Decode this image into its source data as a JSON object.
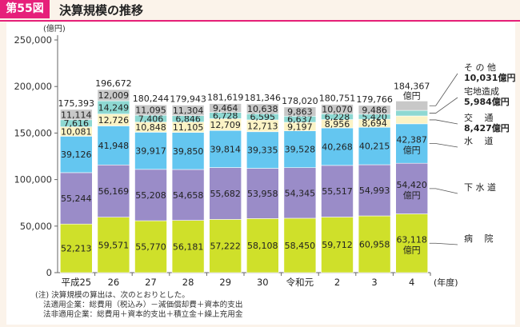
{
  "header": {
    "badge": "第55図",
    "title": "決算規模の推移"
  },
  "chart_data": {
    "type": "bar",
    "stacked": true,
    "title": "決算規模の推移",
    "ylabel": "(億円)",
    "xlabel": "(年度)",
    "ylim": [
      0,
      250000
    ],
    "yticks": [
      "0",
      "50,000",
      "100,000",
      "150,000",
      "200,000",
      "250,000"
    ],
    "categories": [
      "平成25",
      "26",
      "27",
      "28",
      "29",
      "30",
      "令和元",
      "2",
      "3",
      "4"
    ],
    "totals": [
      175393,
      196672,
      180244,
      179943,
      181619,
      181346,
      178020,
      180751,
      179766,
      184367
    ],
    "total_labels": [
      "175,393",
      "196,672",
      "180,244",
      "179,943",
      "181,619",
      "181,346",
      "178,020",
      "180,751",
      "179,766",
      "184,367"
    ],
    "total_unit_last": "億円",
    "series": [
      {
        "name": "病院",
        "color": "#cfe02a",
        "values": [
          52213,
          59571,
          55770,
          56181,
          57222,
          58108,
          58450,
          59712,
          60958,
          63118
        ],
        "labels": [
          "52,213",
          "59,571",
          "55,770",
          "56,181",
          "57,222",
          "58,108",
          "58,450",
          "59,712",
          "60,958",
          "63,118"
        ]
      },
      {
        "name": "下水道",
        "color": "#9a8cc8",
        "values": [
          55244,
          56169,
          55208,
          54658,
          55682,
          53958,
          54345,
          55517,
          54993,
          54420
        ],
        "labels": [
          "55,244",
          "56,169",
          "55,208",
          "54,658",
          "55,682",
          "53,958",
          "54,345",
          "55,517",
          "54,993",
          "54,420"
        ]
      },
      {
        "name": "水道",
        "color": "#64c6f0",
        "values": [
          39126,
          41948,
          39917,
          39850,
          39814,
          39335,
          39528,
          40268,
          40215,
          42387
        ],
        "labels": [
          "39,126",
          "41,948",
          "39,917",
          "39,850",
          "39,814",
          "39,335",
          "39,528",
          "40,268",
          "40,215",
          "42,387"
        ]
      },
      {
        "name": "交通",
        "color": "#fbf3c5",
        "values": [
          10081,
          12726,
          10848,
          11105,
          12709,
          12713,
          9197,
          8956,
          8694,
          8427
        ],
        "labels": [
          "10,081",
          "12,726",
          "10,848",
          "11,105",
          "12,709",
          "12,713",
          "9,197",
          "8,956",
          "8,694",
          "8,427"
        ]
      },
      {
        "name": "宅地造成",
        "color": "#8ed8d2",
        "values": [
          7616,
          14249,
          7406,
          6846,
          6728,
          6595,
          6637,
          6228,
          5420,
          5984
        ],
        "labels": [
          "7,616",
          "14,249",
          "7,406",
          "6,846",
          "6,728",
          "6,595",
          "6,637",
          "6,228",
          "5,420",
          "5,984"
        ]
      },
      {
        "name": "その他",
        "color": "#c8c8c8",
        "values": [
          11114,
          12009,
          11095,
          11304,
          9464,
          10638,
          9863,
          10070,
          9486,
          10031
        ],
        "labels": [
          "11,114",
          "12,009",
          "11,095",
          "11,304",
          "9,464",
          "10,638",
          "9,863",
          "10,070",
          "9,486",
          "10,031"
        ]
      }
    ],
    "legend": [
      {
        "series": "その他",
        "name": "そ の 他",
        "value": "10,031億円"
      },
      {
        "series": "宅地造成",
        "name": "宅地造成",
        "value": "5,984億円"
      },
      {
        "series": "交通",
        "name": "交　 通",
        "value": "8,427億円"
      },
      {
        "series": "水道",
        "name": "水　 道",
        "value": ""
      },
      {
        "series": "下水道",
        "name": "下 水 道",
        "value": ""
      },
      {
        "series": "病院",
        "name": "病　 院",
        "value": ""
      }
    ],
    "last_bar_unit": "億円"
  },
  "notes": [
    "(注)  決算規模の算出は、次のとおりとした。",
    "法適用企業：総費用（税込み）－減価償却費＋資本的支出",
    "法非適用企業：総費用＋資本的支出＋積立金＋繰上充用金"
  ]
}
